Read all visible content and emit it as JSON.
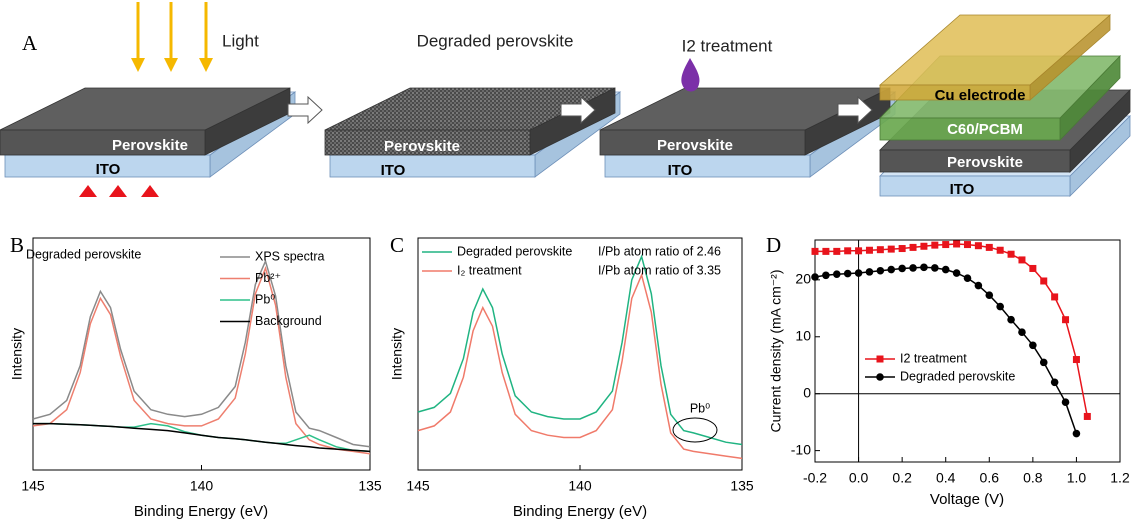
{
  "panel_labels": [
    "A",
    "B",
    "C",
    "D"
  ],
  "diagram": {
    "scenes": [
      {
        "title": "Light",
        "layers": [
          "Perovskite",
          "ITO"
        ]
      },
      {
        "title": "Degraded perovskite",
        "layers": [
          "Perovskite",
          "ITO"
        ]
      },
      {
        "title": "I2 treatment",
        "layers": [
          "Perovskite",
          "ITO"
        ]
      },
      {
        "layers": [
          "Cu electrode",
          "C60/PCBM",
          "Perovskite",
          "ITO"
        ]
      }
    ]
  },
  "chart_data": [
    {
      "type": "line",
      "annotations": [
        "Degraded perovskite"
      ],
      "xlabel": "Binding Energy (eV)",
      "ylabel": "Intensity",
      "x": [
        145,
        144.5,
        144,
        143.6,
        143.3,
        143,
        142.7,
        142.4,
        142,
        141.5,
        141,
        140.5,
        140,
        139.5,
        139,
        138.7,
        138.4,
        138.1,
        137.8,
        137.5,
        137.2,
        136.8,
        136.5,
        136,
        135.5,
        135
      ],
      "xlim": [
        145,
        135
      ],
      "xticks": [
        145,
        140,
        135
      ],
      "ylim": [
        0,
        100
      ],
      "legend": "upper right",
      "series": [
        {
          "name": "XPS spectra",
          "color": "#8a8a8a",
          "values": [
            22,
            24,
            30,
            45,
            66,
            77,
            70,
            52,
            34,
            26,
            24,
            23,
            24,
            27,
            36,
            55,
            80,
            90,
            75,
            45,
            25,
            18,
            17,
            14,
            11,
            10
          ]
        },
        {
          "name": "Pb²⁺",
          "color": "#ee7f6f",
          "values": [
            19,
            20,
            26,
            42,
            63,
            74,
            67,
            49,
            30,
            22,
            20,
            19,
            19,
            22,
            31,
            50,
            76,
            87,
            71,
            40,
            20,
            13,
            11,
            9,
            8,
            7
          ]
        },
        {
          "name": "Pb⁰",
          "color": "#2ec08a",
          "values": [
            20,
            20,
            19.7,
            19.5,
            19.3,
            19,
            18.8,
            18.5,
            18.5,
            20,
            19,
            16.5,
            15,
            14,
            13.5,
            13,
            12.5,
            12,
            11.5,
            11.5,
            13,
            15,
            13,
            10,
            8.5,
            8
          ]
        },
        {
          "name": "Background",
          "color": "#000000",
          "values": [
            20,
            20,
            19.7,
            19.5,
            19.3,
            19,
            18.8,
            18.5,
            18,
            17.5,
            17,
            16,
            15,
            14,
            13.5,
            13,
            12.5,
            12,
            11.5,
            11,
            10.5,
            10,
            9.5,
            9,
            8.5,
            8
          ]
        }
      ]
    },
    {
      "type": "line",
      "annotations": [
        "I/Pb atom ratio of 2.46",
        "I/Pb atom ratio of 3.35",
        "Pb⁰"
      ],
      "xlabel": "Binding Energy (eV)",
      "ylabel": "Intensity",
      "x": [
        145,
        144.5,
        144,
        143.6,
        143.3,
        143,
        142.7,
        142.4,
        142,
        141.5,
        141,
        140.5,
        140,
        139.5,
        139,
        138.7,
        138.4,
        138.1,
        137.8,
        137.5,
        137.2,
        136.8,
        136.5,
        136,
        135.5,
        135
      ],
      "xlim": [
        145,
        135
      ],
      "xticks": [
        145,
        140,
        135
      ],
      "ylim": [
        0,
        100
      ],
      "legend": "upper left",
      "series": [
        {
          "name": "Degraded perovskite",
          "color": "#20b482",
          "values": [
            25,
            27,
            33,
            48,
            68,
            78,
            70,
            50,
            32,
            25,
            23,
            22,
            22,
            25,
            34,
            55,
            82,
            92,
            76,
            45,
            24,
            17,
            16,
            14,
            12,
            11
          ]
        },
        {
          "name": "I₂ treatment",
          "color": "#f07a6a",
          "values": [
            17,
            19,
            25,
            40,
            60,
            70,
            62,
            42,
            24,
            17,
            15,
            14,
            14,
            17,
            26,
            47,
            74,
            84,
            68,
            37,
            16,
            9,
            8,
            7,
            6,
            5
          ]
        }
      ]
    },
    {
      "type": "line",
      "xlabel": "Voltage (V)",
      "ylabel": "Current density (mA cm⁻²)",
      "xlim": [
        -0.2,
        1.2
      ],
      "xticks": [
        -0.2,
        {
          "value": 0,
          "label": "0.0"
        },
        0.2,
        0.4,
        0.6,
        0.8,
        {
          "value": 1,
          "label": "1.0"
        },
        1.2
      ],
      "ylim": [
        -12,
        27
      ],
      "yticks": [
        -10,
        0,
        10,
        20
      ],
      "zero_lines": true,
      "legend": "center left",
      "series": [
        {
          "name": "I2 treatment",
          "color": "#e8141c",
          "marker": "square",
          "x": [
            -0.2,
            -0.15,
            -0.1,
            -0.05,
            0,
            0.05,
            0.1,
            0.15,
            0.2,
            0.25,
            0.3,
            0.35,
            0.4,
            0.45,
            0.5,
            0.55,
            0.6,
            0.65,
            0.7,
            0.75,
            0.8,
            0.85,
            0.9,
            0.95,
            1,
            1.05
          ],
          "values": [
            25.0,
            25.0,
            25.0,
            25.1,
            25.1,
            25.2,
            25.3,
            25.4,
            25.5,
            25.7,
            25.9,
            26.1,
            26.2,
            26.3,
            26.2,
            26.0,
            25.7,
            25.2,
            24.5,
            23.5,
            22.0,
            19.8,
            17.0,
            13.0,
            6.0,
            -4.0
          ]
        },
        {
          "name": "Degraded perovskite",
          "color": "#000000",
          "marker": "circle",
          "x": [
            -0.2,
            -0.15,
            -0.1,
            -0.05,
            0,
            0.05,
            0.1,
            0.15,
            0.2,
            0.25,
            0.3,
            0.35,
            0.4,
            0.45,
            0.5,
            0.55,
            0.6,
            0.65,
            0.7,
            0.75,
            0.8,
            0.85,
            0.9,
            0.95,
            1
          ],
          "values": [
            20.5,
            20.8,
            21.0,
            21.1,
            21.2,
            21.4,
            21.6,
            21.8,
            22.0,
            22.1,
            22.2,
            22.1,
            21.8,
            21.2,
            20.3,
            19.0,
            17.3,
            15.3,
            13.0,
            10.8,
            8.5,
            5.5,
            2.0,
            -1.5,
            -7.0
          ]
        }
      ]
    }
  ]
}
